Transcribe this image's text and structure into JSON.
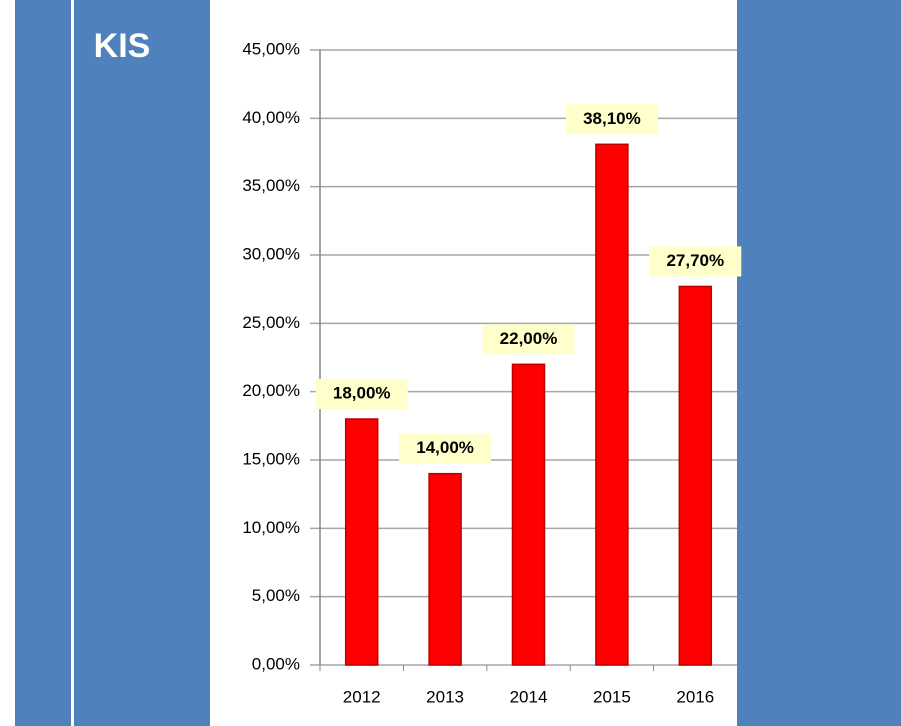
{
  "chart_data": {
    "type": "bar",
    "title": "KIS",
    "categories": [
      "2012",
      "2013",
      "2014",
      "2015",
      "2016"
    ],
    "values": [
      18,
      14,
      22,
      38.1,
      27.7
    ],
    "value_labels": [
      "18,00%",
      "14,00%",
      "22,00%",
      "38,10%",
      "27,70%"
    ],
    "color": "#ff0000",
    "ylim": [
      0,
      45
    ],
    "yticks": [
      {
        "value": 0,
        "label": "0,00%"
      },
      {
        "value": 5,
        "label": "5,00%"
      },
      {
        "value": 10,
        "label": "10,00%"
      },
      {
        "value": 15,
        "label": "15,00%"
      },
      {
        "value": 20,
        "label": "20,00%"
      },
      {
        "value": 25,
        "label": "25,00%"
      },
      {
        "value": 30,
        "label": "30,00%"
      },
      {
        "value": 35,
        "label": "35,00%"
      },
      {
        "value": 40,
        "label": "40,00%"
      },
      {
        "value": 45,
        "label": "45,00%"
      }
    ],
    "grid": true
  }
}
